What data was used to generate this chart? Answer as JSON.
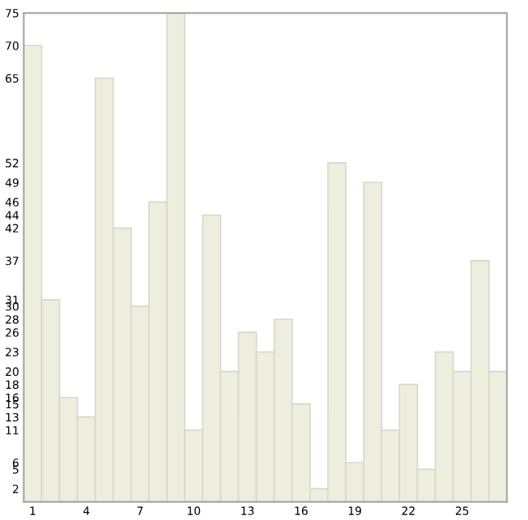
{
  "chart_data": {
    "type": "bar",
    "categories": [
      "1",
      null,
      null,
      "4",
      null,
      null,
      "7",
      null,
      null,
      "10",
      null,
      null,
      "13",
      null,
      null,
      "16",
      null,
      null,
      "19",
      null,
      null,
      "22",
      null,
      null,
      "25",
      null,
      null
    ],
    "values": [
      70,
      31,
      16,
      13,
      65,
      42,
      30,
      46,
      75,
      11,
      44,
      20,
      26,
      23,
      28,
      15,
      2,
      52,
      6,
      49,
      11,
      18,
      5,
      23,
      20,
      37,
      20
    ],
    "color": "#eeeedf",
    "ylim": [
      0,
      75
    ],
    "yticks": [
      2,
      5,
      6,
      11,
      13,
      15,
      16,
      18,
      20,
      23,
      26,
      28,
      30,
      31,
      37,
      42,
      44,
      46,
      49,
      52,
      65,
      70,
      75
    ],
    "grid": false
  }
}
